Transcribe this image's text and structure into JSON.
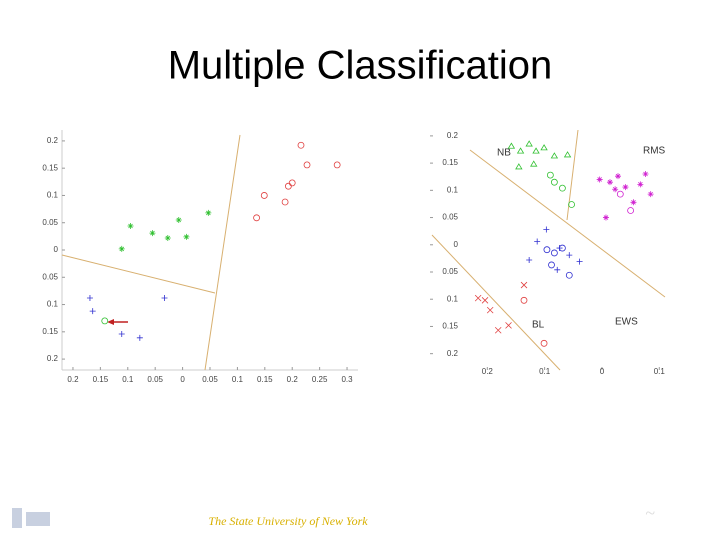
{
  "title": "Multiple Classification",
  "footer": "The State University of New York",
  "chart_data": [
    {
      "type": "scatter",
      "xlim": [
        -0.22,
        0.32
      ],
      "ylim": [
        -0.22,
        0.22
      ],
      "xticks": [
        {
          "value": -0.2,
          "label": "0.2"
        },
        {
          "value": -0.15,
          "label": "0.15"
        },
        {
          "value": -0.1,
          "label": "0.1"
        },
        {
          "value": -0.05,
          "label": "0.05"
        },
        0,
        0.05,
        0.1,
        0.15,
        0.2,
        0.25,
        0.3
      ],
      "yticks": [
        0.2,
        0.15,
        0.1,
        0.05,
        0,
        {
          "value": -0.05,
          "label": "0.05"
        },
        {
          "value": -0.1,
          "label": "0.1"
        },
        {
          "value": -0.15,
          "label": "0.15"
        },
        {
          "value": -0.2,
          "label": "0.2"
        }
      ],
      "series": [
        {
          "color": "#e04040",
          "marker": "o",
          "x": [
            0.216,
            0.227,
            0.282,
            0.2,
            0.193,
            0.149,
            0.187,
            0.135
          ],
          "values": [
            0.192,
            0.156,
            0.156,
            0.123,
            0.117,
            0.1,
            0.088,
            0.059
          ]
        },
        {
          "color": "#30c030",
          "marker": "*",
          "x": [
            -0.095,
            -0.055,
            -0.027,
            -0.007,
            0.007,
            -0.111,
            0.047
          ],
          "values": [
            0.044,
            0.031,
            0.022,
            0.055,
            0.024,
            0.002,
            0.068
          ]
        },
        {
          "color": "#3030d0",
          "marker": "+",
          "x": [
            -0.169,
            -0.164,
            -0.033,
            -0.111,
            -0.078
          ],
          "values": [
            -0.088,
            -0.112,
            -0.088,
            -0.154,
            -0.161
          ]
        },
        {
          "color": "#30c030",
          "marker": "o",
          "x": [
            -0.142
          ],
          "values": [
            -0.13
          ]
        }
      ]
    },
    {
      "type": "scatter",
      "xlim": [
        -0.3,
        0.11
      ],
      "ylim": [
        -0.23,
        0.22
      ],
      "xticks": [
        {
          "value": -0.2,
          "label": "0.2"
        },
        {
          "value": -0.1,
          "label": "0.1"
        },
        0,
        0.1
      ],
      "yticks": [
        0.2,
        0.15,
        0.1,
        0.05,
        0,
        {
          "value": -0.05,
          "label": "0.05"
        },
        {
          "value": -0.1,
          "label": "0.1"
        },
        {
          "value": -0.15,
          "label": "0.15"
        },
        {
          "value": -0.2,
          "label": "0.2"
        }
      ],
      "annotations": [
        "NB",
        "RMS",
        "EWS",
        "BL"
      ],
      "series": [
        {
          "color": "#30c030",
          "marker": "^",
          "x": [
            -0.158,
            -0.142,
            -0.127,
            -0.115,
            -0.101,
            -0.145,
            -0.119,
            -0.083,
            -0.06
          ],
          "values": [
            0.181,
            0.172,
            0.185,
            0.172,
            0.178,
            0.143,
            0.148,
            0.163,
            0.165
          ]
        },
        {
          "color": "#30c030",
          "marker": "o",
          "x": [
            -0.09,
            -0.083,
            -0.069,
            -0.053
          ],
          "values": [
            0.128,
            0.115,
            0.104,
            0.074
          ]
        },
        {
          "color": "#d020d0",
          "marker": "*",
          "x": [
            -0.004,
            0.014,
            0.028,
            0.041,
            0.067,
            0.076,
            0.085,
            0.055,
            0.007,
            0.023
          ],
          "values": [
            0.12,
            0.115,
            0.126,
            0.106,
            0.111,
            0.13,
            0.093,
            0.078,
            0.05,
            0.102
          ]
        },
        {
          "color": "#d020d0",
          "marker": "o",
          "x": [
            0.05,
            0.032
          ],
          "values": [
            0.063,
            0.093
          ]
        },
        {
          "color": "#3030d0",
          "marker": "+",
          "x": [
            -0.097,
            -0.113,
            -0.127,
            -0.074,
            -0.057,
            -0.039,
            -0.078
          ],
          "values": [
            0.028,
            0.006,
            -0.028,
            -0.006,
            -0.019,
            -0.031,
            -0.046
          ]
        },
        {
          "color": "#3030d0",
          "marker": "o",
          "x": [
            -0.096,
            -0.083,
            -0.069,
            -0.057,
            -0.088
          ],
          "values": [
            -0.009,
            -0.015,
            -0.006,
            -0.056,
            -0.037
          ]
        },
        {
          "color": "#e04040",
          "marker": "x",
          "x": [
            -0.204,
            -0.195,
            -0.181,
            -0.163,
            -0.136,
            -0.216
          ],
          "values": [
            -0.102,
            -0.12,
            -0.157,
            -0.148,
            -0.074,
            -0.098
          ]
        },
        {
          "color": "#e04040",
          "marker": "o",
          "x": [
            -0.101,
            -0.136
          ],
          "values": [
            -0.181,
            -0.102
          ]
        }
      ]
    }
  ]
}
